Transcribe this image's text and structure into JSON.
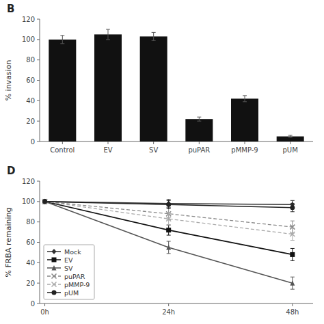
{
  "chart_data": [
    {
      "type": "bar",
      "title": "B",
      "categories": [
        "Control",
        "EV",
        "SV",
        "puPAR",
        "pMMP-9",
        "pUM"
      ],
      "values": [
        100,
        105,
        103,
        22,
        42,
        5
      ],
      "errors": [
        4,
        5,
        4,
        2,
        3,
        1
      ],
      "color": "#111111",
      "y_label": "% invasion",
      "ylim": [
        0,
        120
      ],
      "yticks": [
        0,
        20,
        40,
        60,
        80,
        100,
        120
      ],
      "grid": false
    },
    {
      "type": "line",
      "title": "D",
      "x": [
        0,
        24,
        48
      ],
      "xlim": [
        -1,
        52
      ],
      "xticks": [
        {
          "value": 0,
          "label": "0h"
        },
        {
          "value": 24,
          "label": "24h"
        },
        {
          "value": 48,
          "label": "48h"
        }
      ],
      "y_label": "% FRBA remaining",
      "ylim": [
        0,
        120
      ],
      "yticks": [
        0,
        20,
        40,
        60,
        80,
        100,
        120
      ],
      "grid": false,
      "legend": "lower left",
      "series": [
        {
          "name": "Mock",
          "values": [
            100,
            98,
            97
          ],
          "errors": [
            0,
            4,
            4
          ],
          "color": "#333333",
          "marker": "diamond",
          "line_style": "solid"
        },
        {
          "name": "EV",
          "values": [
            100,
            72,
            48
          ],
          "errors": [
            0,
            5,
            6
          ],
          "color": "#111111",
          "marker": "square",
          "line_style": "solid"
        },
        {
          "name": "SV",
          "values": [
            100,
            55,
            20
          ],
          "errors": [
            0,
            6,
            6
          ],
          "color": "#555555",
          "marker": "triangle",
          "line_style": "solid"
        },
        {
          "name": "puPAR",
          "values": [
            100,
            88,
            75
          ],
          "errors": [
            0,
            6,
            6
          ],
          "color": "#888888",
          "marker": "x",
          "line_style": "dashed"
        },
        {
          "name": "pMMP-9",
          "values": [
            100,
            83,
            68
          ],
          "errors": [
            0,
            6,
            6
          ],
          "color": "#aaaaaa",
          "marker": "x",
          "line_style": "dashed"
        },
        {
          "name": "pUM",
          "values": [
            100,
            97,
            94
          ],
          "errors": [
            0,
            4,
            4
          ],
          "color": "#222222",
          "marker": "circle",
          "line_style": "solid"
        }
      ]
    }
  ]
}
